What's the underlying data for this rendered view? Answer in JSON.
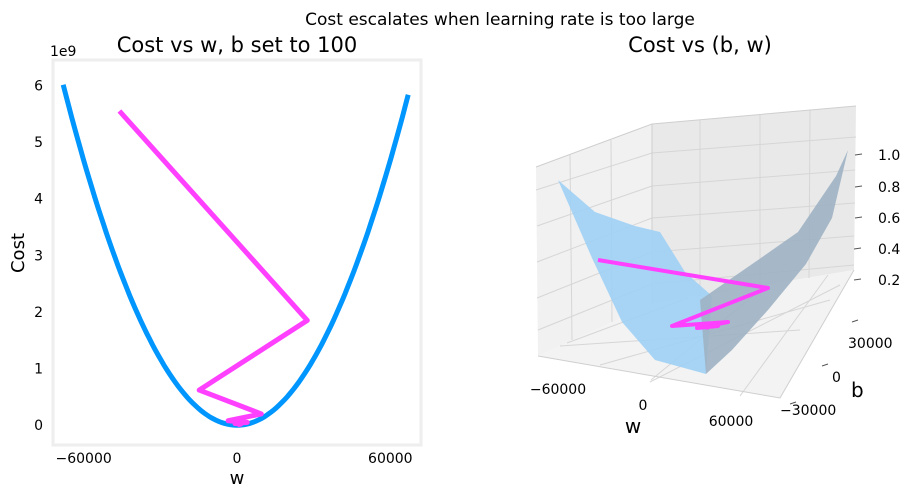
{
  "figure": {
    "suptitle": "Cost escalates when learning rate is too large"
  },
  "chart_data": [
    {
      "type": "line",
      "title": "Cost vs w, b set to 100",
      "xlabel": "w",
      "ylabel": "Cost",
      "y_offset_label": "1e9",
      "xlim": [
        -72000,
        72000
      ],
      "ylim": [
        -0.35,
        6.45
      ],
      "x_ticks": [
        -60000,
        0,
        60000
      ],
      "x_tick_labels": [
        "−60000",
        "0",
        "60000"
      ],
      "y_ticks": [
        0,
        1,
        2,
        3,
        4,
        5,
        6
      ],
      "y_tick_labels": [
        "0",
        "1",
        "2",
        "3",
        "4",
        "5",
        "6"
      ],
      "grid": false,
      "series": [
        {
          "kind": "cost_curve",
          "color": "#0096ff",
          "x_range": [
            -68000,
            67000
          ],
          "coef": 1.3e-09
        },
        {
          "kind": "descent_path",
          "color": "#ff40ff",
          "x": [
            -46000,
            27500,
            -14800,
            9500,
            -3500,
            4000,
            -800,
            1500,
            200
          ],
          "y": [
            5.55,
            1.85,
            0.62,
            0.2,
            0.08,
            0.05,
            0.03,
            0.02,
            0.01
          ]
        }
      ]
    },
    {
      "type": "surface",
      "title": "Cost vs (b, w)",
      "xlabel": "w",
      "ylabel": "b",
      "x_tick_labels": [
        "−60000",
        "0",
        "60000"
      ],
      "y_tick_labels": [
        "30000",
        "0",
        "−30000"
      ],
      "z_tick_labels": [
        "0.2",
        "0.4",
        "0.6",
        "0.8",
        "1.0"
      ],
      "surface_colors": [
        "#9fd0f5",
        "#9fb2c4"
      ],
      "path_color": "#ff40ff"
    }
  ]
}
